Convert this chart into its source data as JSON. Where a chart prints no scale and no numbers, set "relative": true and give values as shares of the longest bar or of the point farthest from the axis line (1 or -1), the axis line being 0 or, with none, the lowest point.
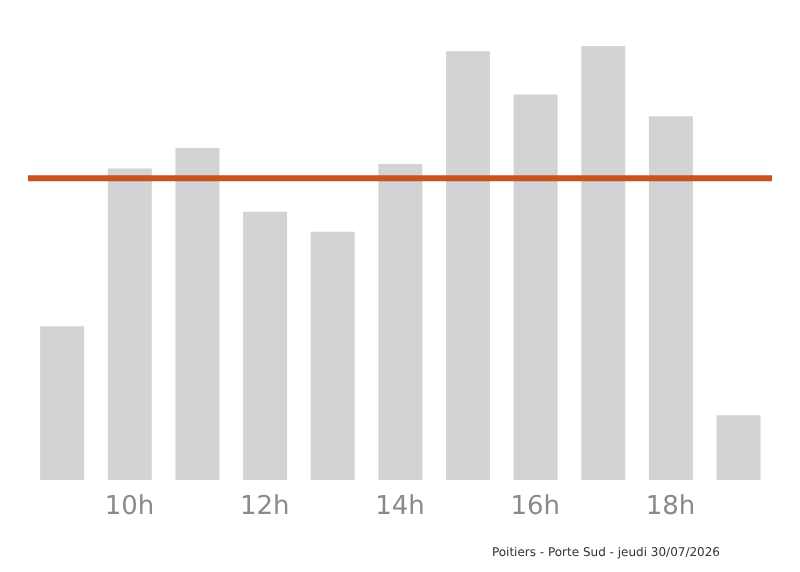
{
  "chart_data": {
    "type": "bar",
    "relative": true,
    "categories": [
      null,
      "10h",
      null,
      "12h",
      null,
      "14h",
      null,
      "16h",
      null,
      "18h",
      null
    ],
    "values": [
      0.354,
      0.718,
      0.765,
      0.618,
      0.572,
      0.728,
      0.988,
      0.888,
      1,
      0.838,
      0.149
    ],
    "color": "#d3d3d5",
    "ref_lines": [
      {
        "axis": "y",
        "value": 0.695,
        "color": "#c8531e"
      }
    ],
    "annotations": [
      "Poitiers - Porte Sud - jeudi 30/07/2026"
    ]
  }
}
